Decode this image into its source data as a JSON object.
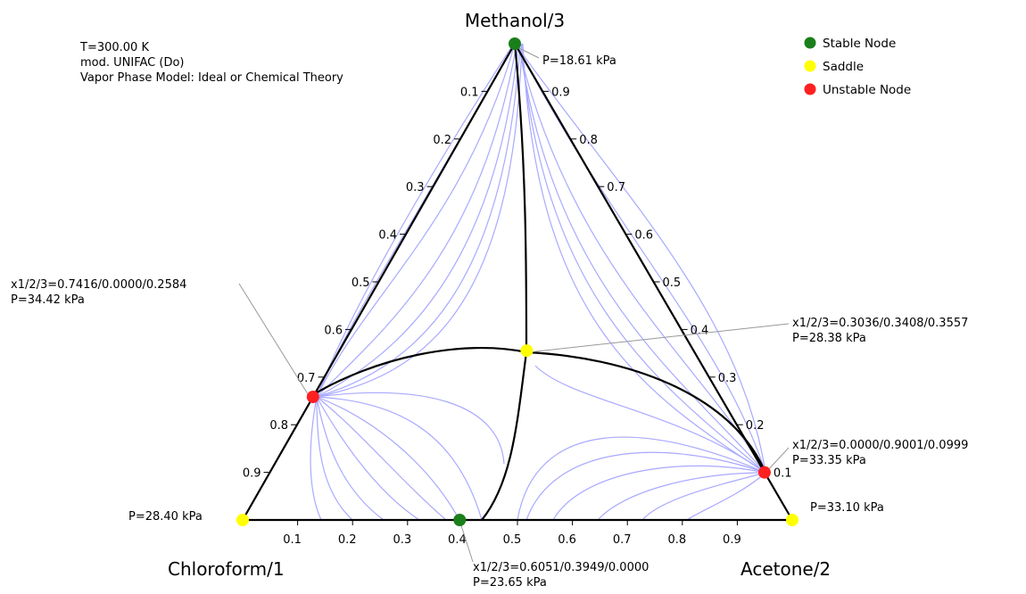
{
  "components": {
    "top": "Methanol/3",
    "left": "Chloroform/1",
    "right": "Acetone/2"
  },
  "conditions": {
    "temperature": "T=300.00 K",
    "model": "mod. UNIFAC (Do)",
    "vapor_model": "Vapor Phase Model: Ideal or Chemical Theory"
  },
  "legend": [
    {
      "label": "Stable Node",
      "color": "#1a7f1a"
    },
    {
      "label": "Saddle",
      "color": "#ffff00"
    },
    {
      "label": "Unstable Node",
      "color": "#ff2020"
    }
  ],
  "ticks": {
    "bottom": [
      "0.1",
      "0.2",
      "0.3",
      "0.4",
      "0.5",
      "0.6",
      "0.7",
      "0.8",
      "0.9"
    ],
    "left": [
      "0.1",
      "0.2",
      "0.3",
      "0.4",
      "0.5",
      "0.6",
      "0.7",
      "0.8",
      "0.9"
    ],
    "right": [
      "0.9",
      "0.8",
      "0.7",
      "0.6",
      "0.5",
      "0.4",
      "0.3",
      "0.2",
      "0.1"
    ]
  },
  "singular_points": [
    {
      "id": "methanol-vertex",
      "type": "stable",
      "x1": 0.0,
      "x2": 0.0,
      "x3": 1.0,
      "label": [
        "P=18.61 kPa"
      ]
    },
    {
      "id": "chloroform-vertex",
      "type": "saddle",
      "x1": 1.0,
      "x2": 0.0,
      "x3": 0.0,
      "label": [
        "P=28.40 kPa"
      ]
    },
    {
      "id": "acetone-vertex",
      "type": "saddle",
      "x1": 0.0,
      "x2": 1.0,
      "x3": 0.0,
      "label": [
        "P=33.10 kPa"
      ]
    },
    {
      "id": "azeo-chloroform-methanol",
      "type": "unstable",
      "x1": 0.7416,
      "x2": 0.0,
      "x3": 0.2584,
      "label": [
        "x1/2/3=0.7416/0.0000/0.2584",
        "P=34.42 kPa"
      ]
    },
    {
      "id": "azeo-ternary",
      "type": "saddle",
      "x1": 0.3036,
      "x2": 0.3408,
      "x3": 0.3557,
      "label": [
        "x1/2/3=0.3036/0.3408/0.3557",
        "P=28.38 kPa"
      ]
    },
    {
      "id": "azeo-acetone-methanol",
      "type": "unstable",
      "x1": 0.0,
      "x2": 0.9001,
      "x3": 0.0999,
      "label": [
        "x1/2/3=0.0000/0.9001/0.0999",
        "P=33.35 kPa"
      ]
    },
    {
      "id": "azeo-chloroform-acetone",
      "type": "stable",
      "x1": 0.6051,
      "x2": 0.3949,
      "x3": 0.0,
      "label": [
        "x1/2/3=0.6051/0.3949/0.0000",
        "P=23.65 kPa"
      ]
    }
  ]
}
